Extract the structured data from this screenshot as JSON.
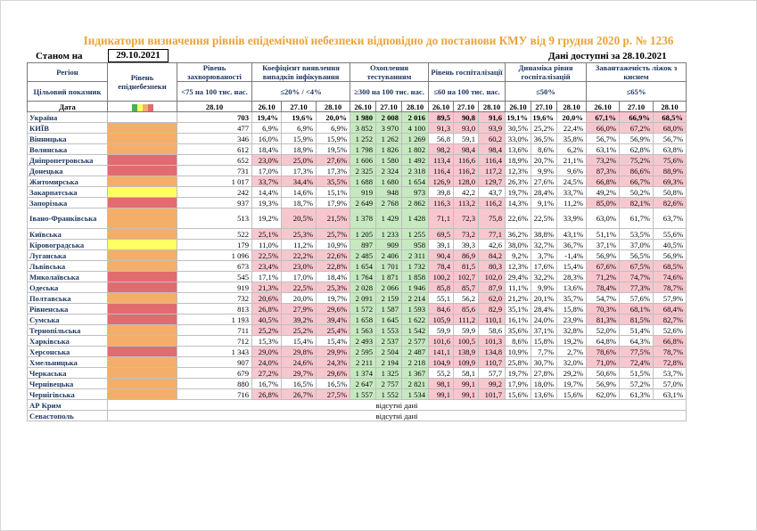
{
  "title": "Індикатори визначення рівнів епідемічної небезпеки відповідно до постанови КМУ від 9 грудня 2020 р. № 1236",
  "status_label": "Станом на",
  "status_date": "29.10.2021",
  "available_label": "Дані доступні за 28.10.2021",
  "colors": {
    "yellow": "#ffff66",
    "orange": "#f4ae6a",
    "red": "#e06c6f",
    "pink": "#f8c7ce",
    "green": "#c6e9c0",
    "title": "#e8a43a"
  },
  "headers": {
    "region": "Регіон",
    "target": "Цільовий показник",
    "date": "Дата",
    "level": "Рівень епіднебезпеки",
    "incidence": "Рівень захворюваності",
    "incidence_target": "<75 на 100 тис. нас.",
    "detection": "Коефіцієнт виявлення випадків інфікування",
    "detection_target": "≤20% / <4%",
    "testing": "Охоплення тестуванням",
    "testing_target": "≥300 на 100 тис. нас.",
    "hosp": "Рівень госпіталізації",
    "hosp_target": "≤60 на 100 тис. нас.",
    "dyn": "Динаміка рівня госпіталізацій",
    "dyn_target": "≤50%",
    "oxy": "Завантаженість ліжок з киснем",
    "oxy_target": "≤65%",
    "d1": "28.10",
    "dates3": [
      "26.10",
      "27.10",
      "28.10"
    ]
  },
  "no_data": "відсутні дані",
  "rows": [
    {
      "region": "Україна",
      "level": "",
      "inc": "703",
      "det": [
        "19,4%",
        "19,6%",
        "20,0%"
      ],
      "test": [
        "1 980",
        "2 008",
        "2 016"
      ],
      "hosp": [
        "89,5",
        "90,8",
        "91,6"
      ],
      "dyn": [
        "19,1%",
        "19,6%",
        "20,0%"
      ],
      "oxy": [
        "67,1%",
        "66,9%",
        "68,5%"
      ]
    },
    {
      "region": "КИЇВ",
      "level": "orange",
      "inc": "477",
      "det": [
        "6,9%",
        "6,9%",
        "6,9%"
      ],
      "test": [
        "3 852",
        "3 970",
        "4 100"
      ],
      "hosp": [
        "91,3",
        "93,0",
        "93,9"
      ],
      "dyn": [
        "30,5%",
        "25,2%",
        "22,4%"
      ],
      "oxy": [
        "66,0%",
        "67,2%",
        "68,0%"
      ]
    },
    {
      "region": "Вінницька",
      "level": "orange",
      "inc": "346",
      "det": [
        "16,0%",
        "15,9%",
        "15,9%"
      ],
      "test": [
        "1 252",
        "1 262",
        "1 269"
      ],
      "hosp": [
        "56,8",
        "59,1",
        "60,2"
      ],
      "dyn": [
        "33,0%",
        "36,5%",
        "35,8%"
      ],
      "oxy": [
        "56,7%",
        "56,9%",
        "56,7%"
      ]
    },
    {
      "region": "Волинська",
      "level": "orange",
      "inc": "612",
      "det": [
        "18,4%",
        "18,9%",
        "19,5%"
      ],
      "test": [
        "1 798",
        "1 826",
        "1 802"
      ],
      "hosp": [
        "98,2",
        "98,4",
        "98,4"
      ],
      "dyn": [
        "13,6%",
        "8,6%",
        "6,2%"
      ],
      "oxy": [
        "63,1%",
        "62,8%",
        "63,8%"
      ]
    },
    {
      "region": "Дніпропетровська",
      "level": "red",
      "inc": "652",
      "det": [
        "23,0%",
        "25,0%",
        "27,6%"
      ],
      "test": [
        "1 606",
        "1 580",
        "1 492"
      ],
      "hosp": [
        "113,4",
        "116,6",
        "116,4"
      ],
      "dyn": [
        "18,9%",
        "20,7%",
        "21,1%"
      ],
      "oxy": [
        "73,2%",
        "75,2%",
        "75,6%"
      ]
    },
    {
      "region": "Донецька",
      "level": "red",
      "inc": "731",
      "det": [
        "17,0%",
        "17,3%",
        "17,3%"
      ],
      "test": [
        "2 325",
        "2 324",
        "2 318"
      ],
      "hosp": [
        "116,4",
        "116,2",
        "117,2"
      ],
      "dyn": [
        "12,3%",
        "9,9%",
        "9,6%"
      ],
      "oxy": [
        "87,3%",
        "86,6%",
        "88,9%"
      ]
    },
    {
      "region": "Житомирська",
      "level": "orange",
      "inc": "1 017",
      "det": [
        "33,7%",
        "34,4%",
        "35,5%"
      ],
      "test": [
        "1 688",
        "1 680",
        "1 654"
      ],
      "hosp": [
        "126,9",
        "128,0",
        "129,7"
      ],
      "dyn": [
        "26,3%",
        "27,6%",
        "24,5%"
      ],
      "oxy": [
        "66,8%",
        "66,7%",
        "69,3%"
      ]
    },
    {
      "region": "Закарпатська",
      "level": "yellow",
      "inc": "242",
      "det": [
        "14,4%",
        "14,6%",
        "15,1%"
      ],
      "test": [
        "919",
        "948",
        "973"
      ],
      "hosp": [
        "39,8",
        "42,2",
        "43,7"
      ],
      "dyn": [
        "19,7%",
        "28,4%",
        "33,7%"
      ],
      "oxy": [
        "49,2%",
        "50,2%",
        "50,8%"
      ]
    },
    {
      "region": "Запорізька",
      "level": "red",
      "inc": "937",
      "det": [
        "19,3%",
        "18,7%",
        "17,9%"
      ],
      "test": [
        "2 649",
        "2 768",
        "2 862"
      ],
      "hosp": [
        "116,3",
        "113,2",
        "116,2"
      ],
      "dyn": [
        "14,3%",
        "9,1%",
        "11,2%"
      ],
      "oxy": [
        "85,0%",
        "82,1%",
        "82,6%"
      ]
    },
    {
      "region": "Івано-Франківська",
      "level": "orange",
      "inc": "513",
      "det": [
        "19,2%",
        "20,5%",
        "21,5%"
      ],
      "test": [
        "1 378",
        "1 429",
        "1 428"
      ],
      "hosp": [
        "71,1",
        "72,3",
        "75,8"
      ],
      "dyn": [
        "22,6%",
        "22,5%",
        "33,9%"
      ],
      "oxy": [
        "63,0%",
        "61,7%",
        "63,7%"
      ]
    },
    {
      "region": "Київська",
      "level": "orange",
      "inc": "522",
      "det": [
        "25,1%",
        "25,3%",
        "25,7%"
      ],
      "test": [
        "1 205",
        "1 233",
        "1 255"
      ],
      "hosp": [
        "69,5",
        "73,2",
        "77,1"
      ],
      "dyn": [
        "36,2%",
        "38,8%",
        "43,1%"
      ],
      "oxy": [
        "51,1%",
        "53,5%",
        "55,6%"
      ]
    },
    {
      "region": "Кіровоградська",
      "level": "yellow",
      "inc": "179",
      "det": [
        "11,0%",
        "11,2%",
        "10,9%"
      ],
      "test": [
        "897",
        "909",
        "958"
      ],
      "hosp": [
        "39,1",
        "39,3",
        "42,6"
      ],
      "dyn": [
        "38,0%",
        "32,7%",
        "36,7%"
      ],
      "oxy": [
        "37,1%",
        "37,0%",
        "40,5%"
      ]
    },
    {
      "region": "Луганська",
      "level": "orange",
      "inc": "1 096",
      "det": [
        "22,5%",
        "22,2%",
        "22,6%"
      ],
      "test": [
        "2 485",
        "2 406",
        "2 311"
      ],
      "hosp": [
        "90,4",
        "86,9",
        "84,2"
      ],
      "dyn": [
        "9,2%",
        "3,7%",
        "-1,4%"
      ],
      "oxy": [
        "56,9%",
        "56,5%",
        "56,9%"
      ]
    },
    {
      "region": "Львівська",
      "level": "orange",
      "inc": "673",
      "det": [
        "23,4%",
        "23,0%",
        "22,8%"
      ],
      "test": [
        "1 654",
        "1 701",
        "1 732"
      ],
      "hosp": [
        "78,4",
        "81,5",
        "80,3"
      ],
      "dyn": [
        "12,3%",
        "17,6%",
        "15,4%"
      ],
      "oxy": [
        "67,6%",
        "67,5%",
        "68,5%"
      ]
    },
    {
      "region": "Миколаївська",
      "level": "red",
      "inc": "545",
      "det": [
        "17,1%",
        "17,0%",
        "18,4%"
      ],
      "test": [
        "1 764",
        "1 871",
        "1 858"
      ],
      "hosp": [
        "100,2",
        "102,7",
        "102,0"
      ],
      "dyn": [
        "29,4%",
        "32,2%",
        "28,3%"
      ],
      "oxy": [
        "71,2%",
        "74,7%",
        "74,6%"
      ]
    },
    {
      "region": "Одеська",
      "level": "red",
      "inc": "919",
      "det": [
        "21,3%",
        "22,5%",
        "25,3%"
      ],
      "test": [
        "2 028",
        "2 066",
        "1 946"
      ],
      "hosp": [
        "85,8",
        "85,7",
        "87,9"
      ],
      "dyn": [
        "11,1%",
        "9,9%",
        "13,6%"
      ],
      "oxy": [
        "78,4%",
        "77,3%",
        "78,7%"
      ]
    },
    {
      "region": "Полтавська",
      "level": "orange",
      "inc": "732",
      "det": [
        "20,6%",
        "20,0%",
        "19,7%"
      ],
      "test": [
        "2 091",
        "2 159",
        "2 214"
      ],
      "hosp": [
        "55,1",
        "56,2",
        "62,0"
      ],
      "dyn": [
        "21,2%",
        "20,1%",
        "35,7%"
      ],
      "oxy": [
        "54,7%",
        "57,6%",
        "57,9%"
      ]
    },
    {
      "region": "Рівненська",
      "level": "red",
      "inc": "813",
      "det": [
        "26,8%",
        "27,9%",
        "29,6%"
      ],
      "test": [
        "1 572",
        "1 587",
        "1 593"
      ],
      "hosp": [
        "84,6",
        "85,6",
        "82,9"
      ],
      "dyn": [
        "35,1%",
        "28,4%",
        "15,8%"
      ],
      "oxy": [
        "70,3%",
        "68,1%",
        "68,4%"
      ]
    },
    {
      "region": "Сумська",
      "level": "red",
      "inc": "1 193",
      "det": [
        "40,5%",
        "39,2%",
        "39,4%"
      ],
      "test": [
        "1 658",
        "1 645",
        "1 622"
      ],
      "hosp": [
        "105,9",
        "111,2",
        "110,1"
      ],
      "dyn": [
        "16,1%",
        "24,0%",
        "23,9%"
      ],
      "oxy": [
        "81,3%",
        "81,5%",
        "82,7%"
      ]
    },
    {
      "region": "Тернопільська",
      "level": "orange",
      "inc": "711",
      "det": [
        "25,2%",
        "25,2%",
        "25,4%"
      ],
      "test": [
        "1 563",
        "1 553",
        "1 542"
      ],
      "hosp": [
        "59,9",
        "59,9",
        "58,6"
      ],
      "dyn": [
        "35,6%",
        "37,1%",
        "32,8%"
      ],
      "oxy": [
        "52,0%",
        "51,4%",
        "52,6%"
      ]
    },
    {
      "region": "Харківська",
      "level": "orange",
      "inc": "712",
      "det": [
        "15,3%",
        "15,4%",
        "15,4%"
      ],
      "test": [
        "2 493",
        "2 537",
        "2 577"
      ],
      "hosp": [
        "101,6",
        "100,5",
        "101,3"
      ],
      "dyn": [
        "8,6%",
        "15,8%",
        "19,2%"
      ],
      "oxy": [
        "64,8%",
        "64,3%",
        "66,8%"
      ]
    },
    {
      "region": "Херсонська",
      "level": "red",
      "inc": "1 343",
      "det": [
        "29,0%",
        "29,8%",
        "29,9%"
      ],
      "test": [
        "2 595",
        "2 504",
        "2 487"
      ],
      "hosp": [
        "141,1",
        "138,9",
        "134,8"
      ],
      "dyn": [
        "10,9%",
        "7,7%",
        "2,7%"
      ],
      "oxy": [
        "78,6%",
        "77,5%",
        "78,7%"
      ]
    },
    {
      "region": "Хмельницька",
      "level": "orange",
      "inc": "907",
      "det": [
        "24,0%",
        "24,6%",
        "24,3%"
      ],
      "test": [
        "2 211",
        "2 194",
        "2 218"
      ],
      "hosp": [
        "104,9",
        "109,9",
        "110,7"
      ],
      "dyn": [
        "25,8%",
        "30,7%",
        "32,0%"
      ],
      "oxy": [
        "71,0%",
        "72,4%",
        "72,8%"
      ]
    },
    {
      "region": "Черкаська",
      "level": "orange",
      "inc": "679",
      "det": [
        "27,2%",
        "29,7%",
        "29,6%"
      ],
      "test": [
        "1 374",
        "1 325",
        "1 367"
      ],
      "hosp": [
        "55,2",
        "58,1",
        "57,7"
      ],
      "dyn": [
        "19,7%",
        "27,8%",
        "29,2%"
      ],
      "oxy": [
        "50,6%",
        "51,5%",
        "53,7%"
      ]
    },
    {
      "region": "Чернівецька",
      "level": "orange",
      "inc": "880",
      "det": [
        "16,7%",
        "16,5%",
        "16,5%"
      ],
      "test": [
        "2 647",
        "2 757",
        "2 821"
      ],
      "hosp": [
        "98,1",
        "99,1",
        "99,2"
      ],
      "dyn": [
        "17,9%",
        "18,0%",
        "19,7%"
      ],
      "oxy": [
        "56,9%",
        "57,2%",
        "57,0%"
      ]
    },
    {
      "region": "Чернігівська",
      "level": "orange",
      "inc": "716",
      "det": [
        "26,8%",
        "26,7%",
        "27,5%"
      ],
      "test": [
        "1 557",
        "1 552",
        "1 534"
      ],
      "hosp": [
        "99,1",
        "99,1",
        "101,7"
      ],
      "dyn": [
        "15,6%",
        "13,6%",
        "15,6%"
      ],
      "oxy": [
        "62,0%",
        "61,3%",
        "63,1%"
      ]
    }
  ],
  "nodata_rows": [
    "АР Крим",
    "Севастополь"
  ]
}
